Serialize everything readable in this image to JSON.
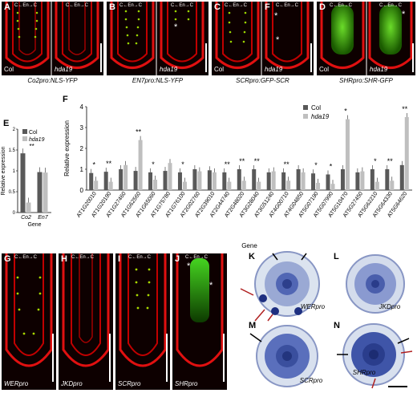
{
  "top_row": {
    "panels": [
      {
        "label": "A",
        "left_caption": "Col",
        "right_caption": "hda19",
        "axis": "C←En→C",
        "bottom": "Co2pro:NLS-YFP"
      },
      {
        "label": "B",
        "left_caption": "",
        "right_caption": "hda19",
        "axis": "C←En→C",
        "bottom": "EN7pro:NLS-YFP"
      },
      {
        "label": "C",
        "left_caption": "Col",
        "right_caption": "",
        "axis": "C←En→C",
        "bottom": "SCRpro:GFP-SCR"
      },
      {
        "label": "F",
        "left_caption": "",
        "right_caption": "hda19",
        "axis": "C←En→C",
        "bottom": ""
      },
      {
        "label": "D",
        "left_caption": "Col",
        "right_caption": "hda19",
        "axis": "C←En→C",
        "bottom": "SHRpro:SHR-GFP"
      }
    ],
    "asterisk": "*"
  },
  "panel_e": {
    "label": "E",
    "chart_data": {
      "type": "bar",
      "categories": [
        "Co2",
        "En7"
      ],
      "series": [
        {
          "name": "Col",
          "values": [
            1.42,
            0.97
          ],
          "color": "#595959"
        },
        {
          "name": "hda19",
          "values": [
            0.24,
            0.96
          ],
          "color": "#bfbfbf"
        }
      ],
      "xlabel": "Gene",
      "ylabel": "Relative expression",
      "ylim": [
        0,
        2
      ],
      "yticks": [
        "0",
        "0.5",
        "1",
        "1.5",
        "2"
      ],
      "annotations": [
        "**"
      ],
      "legend": "top-right"
    }
  },
  "panel_f": {
    "label": "F",
    "chart_data": {
      "type": "bar",
      "categories": [
        "AT1G20010",
        "AT1G20190",
        "AT1G27460",
        "AT1G62560",
        "AT1G65060",
        "AT1G75780",
        "AT1G76100",
        "AT2G02760",
        "AT2G39010",
        "AT2G44740",
        "AT2G48020",
        "AT3G28040",
        "AT3G51240",
        "AT4G00710",
        "AT4G04850",
        "AT5G07190",
        "AT5G07990",
        "AT5G10470",
        "AT5G27450",
        "AT5G62210",
        "AT5G64330",
        "AT5G64620"
      ],
      "series": [
        {
          "name": "Col",
          "values": [
            0.82,
            0.88,
            1.0,
            0.92,
            0.85,
            0.92,
            0.85,
            1.0,
            0.95,
            0.85,
            1.0,
            1.0,
            0.85,
            0.85,
            1.0,
            0.8,
            0.75,
            1.0,
            0.85,
            1.0,
            1.0,
            1.2
          ],
          "color": "#595959"
        },
        {
          "name": "hda19",
          "values": [
            0.45,
            0.4,
            1.2,
            2.4,
            0.5,
            1.3,
            0.4,
            0.9,
            0.85,
            0.4,
            0.45,
            0.4,
            0.9,
            0.45,
            0.85,
            0.35,
            0.3,
            3.4,
            0.9,
            0.4,
            0.45,
            3.5
          ],
          "color": "#bfbfbf"
        }
      ],
      "xlabel": "Gene",
      "ylabel": "Relative expression",
      "ylim": [
        0,
        4
      ],
      "yticks": [
        "0",
        "1",
        "2",
        "3",
        "4"
      ],
      "significance": [
        "*",
        "**",
        "",
        "**",
        "*",
        "",
        "*",
        "",
        "",
        "**",
        "**",
        "**",
        "",
        "**",
        "",
        "*",
        "*",
        "*",
        "",
        "*",
        "**",
        "**"
      ],
      "legend": "top-left"
    }
  },
  "bottom_row": {
    "panels": [
      {
        "label": "G",
        "axis": "C←En→C",
        "caption": "WERpro"
      },
      {
        "label": "H",
        "axis": "C←En→C",
        "caption": "JKDpro"
      },
      {
        "label": "I",
        "axis": "C←En→C",
        "caption": "SCRpro"
      },
      {
        "label": "J",
        "axis": "C←En→C",
        "caption": "SHRpro"
      }
    ],
    "sections": [
      {
        "label": "K",
        "caption": "WERpro"
      },
      {
        "label": "L",
        "caption": "JKDpro"
      },
      {
        "label": "M",
        "caption": "SCRpro"
      },
      {
        "label": "N",
        "caption": "SHRpro"
      }
    ]
  }
}
